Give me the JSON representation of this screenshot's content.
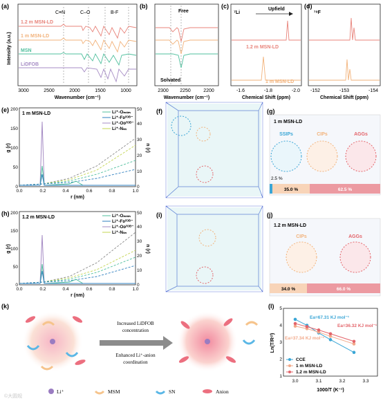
{
  "panels": {
    "a": {
      "letter": "(a)",
      "ylabel": "Intensity (a.u.)",
      "xlabel": "Wavenumber (cm⁻¹)",
      "xticks": [
        "3000",
        "2500",
        "2000",
        "1500",
        "1000"
      ],
      "annotations": [
        "C≡N",
        "C–O",
        "B-F"
      ],
      "series": [
        {
          "name": "1.2 m MSN-LD",
          "color": "#e8837a"
        },
        {
          "name": "1 m MSN-LD",
          "color": "#f2b27a"
        },
        {
          "name": "MSN",
          "color": "#4fbf9d"
        },
        {
          "name": "LiDFOB",
          "color": "#a58bc4"
        }
      ]
    },
    "b": {
      "letter": "(b)",
      "xlabel": "Wavenumber (cm⁻¹)",
      "xticks": [
        "2300",
        "2250",
        "2200"
      ],
      "annotations": [
        "Free",
        "Solvated"
      ]
    },
    "c": {
      "letter": "(c)",
      "nucleus": "⁷Li",
      "xlabel": "Chemical Shift (ppm)",
      "xticks": [
        "-1.6",
        "-1.8",
        "-2.0"
      ],
      "annotation": "Upfield",
      "labels": [
        "1.2 m MSN-LD",
        "1 m MSN-LD"
      ]
    },
    "d": {
      "letter": "(d)",
      "nucleus": "¹⁹F",
      "xticks": [
        "-152",
        "-153",
        "-154"
      ],
      "xlabel": "Chemical Shift (ppm)"
    },
    "e": {
      "letter": "(e)",
      "title": "1 m MSN-LD",
      "ylabel_left": "g (r)",
      "ylabel_right": "n (r)",
      "xlabel": "r (nm)",
      "xticks": [
        "0.0",
        "0.2",
        "0.4",
        "0.6",
        "0.8",
        "1.0"
      ],
      "yticks_left": [
        "0",
        "50",
        "100",
        "150",
        "200"
      ],
      "yticks_right": [
        "0",
        "10",
        "20",
        "30",
        "40",
        "50"
      ],
      "legend": [
        "Li⁺-Oₘₛₘ",
        "Li⁺-Fᴅᶠᴼᴮ⁻",
        "Li⁺-Oᴅᶠᴼᴮ⁻",
        "Li⁺-Nₛₙ"
      ]
    },
    "h": {
      "letter": "(h)",
      "title": "1.2 m MSN-LD",
      "ylabel_left": "g (r)",
      "ylabel_right": "n (r)",
      "xlabel": "r (nm)",
      "xticks": [
        "0.0",
        "0.2",
        "0.4",
        "0.6",
        "0.8",
        "1.0"
      ],
      "yticks_left": [
        "0",
        "50",
        "100",
        "150",
        "200"
      ],
      "yticks_right": [
        "0",
        "10",
        "20",
        "30",
        "40",
        "50"
      ],
      "legend": [
        "Li⁺-Oₘₛₘ",
        "Li⁺-Fᴅᶠᴼᴮ⁻",
        "Li⁺-Oᴅᶠᴼᴮ⁻",
        "Li⁺-Nₛₙ"
      ]
    },
    "f": {
      "letter": "(f)"
    },
    "i": {
      "letter": "(i)"
    },
    "g": {
      "letter": "(g)",
      "title": "1 m MSN-LD",
      "classes": [
        "SSIPs",
        "CIPs",
        "AGGs"
      ],
      "bar": [
        "2.5 %",
        "35.0 %",
        "62.5 %"
      ]
    },
    "j": {
      "letter": "(j)",
      "title": "1.2 m MSN-LD",
      "classes": [
        "CIPs",
        "AGGs"
      ],
      "bar": [
        "34.0 %",
        "66.0 %"
      ]
    },
    "k": {
      "letter": "(k)",
      "arrow_top": [
        "Increased LiDFOB",
        "concentration"
      ],
      "arrow_bottom": [
        "Enhanced  Li⁺-anion",
        "coordination"
      ],
      "legend": [
        "Li⁺",
        "MSM",
        "SN",
        "Anion"
      ]
    },
    "l": {
      "letter": "(l)",
      "ylabel": "Ln(T/Rᶜᵗ)",
      "xlabel": "1000/T (K⁻¹)",
      "xticks": [
        "3.0",
        "3.1",
        "3.2",
        "3.3"
      ],
      "yticks": [
        "1",
        "2",
        "3",
        "4",
        "5"
      ],
      "ea": [
        "Ea=67.31 KJ mol⁻¹",
        "Ea=36.32 KJ mol⁻¹",
        "Ea=37.34 KJ mol⁻¹"
      ],
      "legend": [
        "CCE",
        "1 m MSN-LD",
        "1.2 m MSN-LD"
      ]
    }
  },
  "colors": {
    "cce": "#3aa6d6",
    "m1": "#f2a98a",
    "m12": "#e3646a",
    "mint": "#59c6a6",
    "purple": "#9a7cc1",
    "orange": "#f2b27a",
    "red": "#e8837a"
  },
  "chart_data": [
    {
      "type": "line",
      "panel": "l",
      "title": "",
      "xlabel": "1000/T (K⁻¹)",
      "ylabel": "Ln(T/Rᶜᵗ)",
      "xlim": [
        2.95,
        3.35
      ],
      "ylim": [
        1,
        5
      ],
      "series": [
        {
          "name": "CCE",
          "x": [
            3.0,
            3.05,
            3.1,
            3.15,
            3.25
          ],
          "values": [
            4.35,
            4.0,
            3.55,
            3.15,
            2.4
          ]
        },
        {
          "name": "1 m MSN-LD",
          "x": [
            3.0,
            3.05,
            3.1,
            3.15,
            3.25
          ],
          "values": [
            3.95,
            3.8,
            3.6,
            3.35,
            2.9
          ]
        },
        {
          "name": "1.2 m MSN-LD",
          "x": [
            3.0,
            3.05,
            3.1,
            3.15,
            3.25
          ],
          "values": [
            4.1,
            3.92,
            3.72,
            3.5,
            3.05
          ]
        }
      ]
    },
    {
      "type": "bar",
      "panel": "g",
      "categories": [
        "SSIPs",
        "CIPs",
        "AGGs"
      ],
      "values": [
        2.5,
        35.0,
        62.5
      ]
    },
    {
      "type": "bar",
      "panel": "j",
      "categories": [
        "CIPs",
        "AGGs"
      ],
      "values": [
        34.0,
        66.0
      ]
    }
  ]
}
